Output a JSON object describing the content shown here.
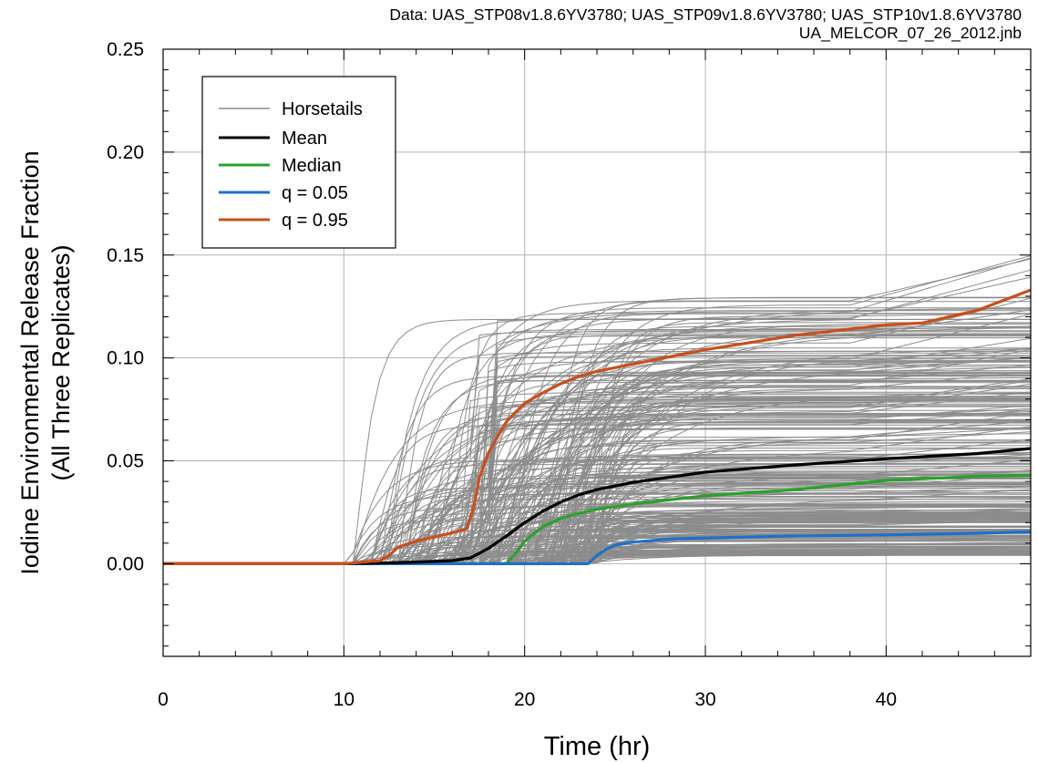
{
  "header": {
    "data_line": "Data: UAS_STP08v1.8.6YV3780; UAS_STP09v1.8.6YV3780; UAS_STP10v1.8.6YV3780",
    "file_line": "UA_MELCOR_07_26_2012.jnb"
  },
  "chart_data": {
    "type": "line",
    "xlabel": "Time (hr)",
    "ylabel_line1": "Iodine Environmental Release Fraction",
    "ylabel_line2": "(All Three Replicates)",
    "xlim": [
      0,
      48
    ],
    "ylim": [
      -0.045,
      0.25
    ],
    "x_ticks": [
      0,
      10,
      20,
      30,
      40
    ],
    "x_tick_labels": [
      "0",
      "10",
      "20",
      "30",
      "40"
    ],
    "y_ticks": [
      0,
      0.05,
      0.1,
      0.15,
      0.2,
      0.25
    ],
    "y_tick_labels": [
      "0.00",
      "0.05",
      "0.10",
      "0.15",
      "0.20",
      "0.25"
    ],
    "grid": true,
    "legend_position": "top-left",
    "legend": [
      "Horsetails",
      "Mean",
      "Median",
      "q = 0.05",
      "q = 0.95"
    ],
    "colors": {
      "horsetails": "#8c8c8c",
      "mean": "#000000",
      "median": "#2ca02c",
      "q05": "#1f6fc9",
      "q95": "#c8501e"
    },
    "series": [
      {
        "name": "Mean",
        "x": [
          0,
          10,
          12,
          14,
          16,
          17,
          18,
          19,
          20,
          21,
          22,
          23,
          24,
          26,
          28,
          30,
          35,
          40,
          45,
          48
        ],
        "values": [
          0,
          0,
          0.0003,
          0.0008,
          0.0015,
          0.0028,
          0.0075,
          0.0135,
          0.02,
          0.0255,
          0.03,
          0.0335,
          0.036,
          0.0395,
          0.042,
          0.0445,
          0.048,
          0.051,
          0.0535,
          0.056
        ]
      },
      {
        "name": "Median",
        "x": [
          0,
          19,
          19.5,
          20,
          21,
          22,
          23,
          24,
          26,
          28,
          30,
          35,
          40,
          45,
          48
        ],
        "values": [
          0,
          0,
          0.005,
          0.011,
          0.018,
          0.022,
          0.0245,
          0.0265,
          0.029,
          0.031,
          0.033,
          0.036,
          0.0405,
          0.0425,
          0.043
        ]
      },
      {
        "name": "q = 0.05",
        "x": [
          0,
          23.5,
          24,
          24.5,
          25,
          26,
          28,
          30,
          35,
          40,
          45,
          48
        ],
        "values": [
          0,
          0,
          0.004,
          0.007,
          0.009,
          0.0105,
          0.012,
          0.0125,
          0.0135,
          0.014,
          0.0148,
          0.0155
        ]
      },
      {
        "name": "q = 0.95",
        "x": [
          0,
          10,
          12,
          12.5,
          13,
          14,
          15,
          16,
          16.8,
          17.2,
          17.5,
          18,
          19,
          20,
          21,
          22,
          23,
          24,
          26,
          28,
          30,
          35,
          40,
          42,
          45,
          48
        ],
        "values": [
          0,
          0,
          0.0015,
          0.004,
          0.008,
          0.011,
          0.013,
          0.015,
          0.017,
          0.028,
          0.042,
          0.054,
          0.069,
          0.078,
          0.083,
          0.0875,
          0.091,
          0.0935,
          0.097,
          0.1005,
          0.104,
          0.111,
          0.116,
          0.117,
          0.123,
          0.133
        ]
      }
    ]
  }
}
